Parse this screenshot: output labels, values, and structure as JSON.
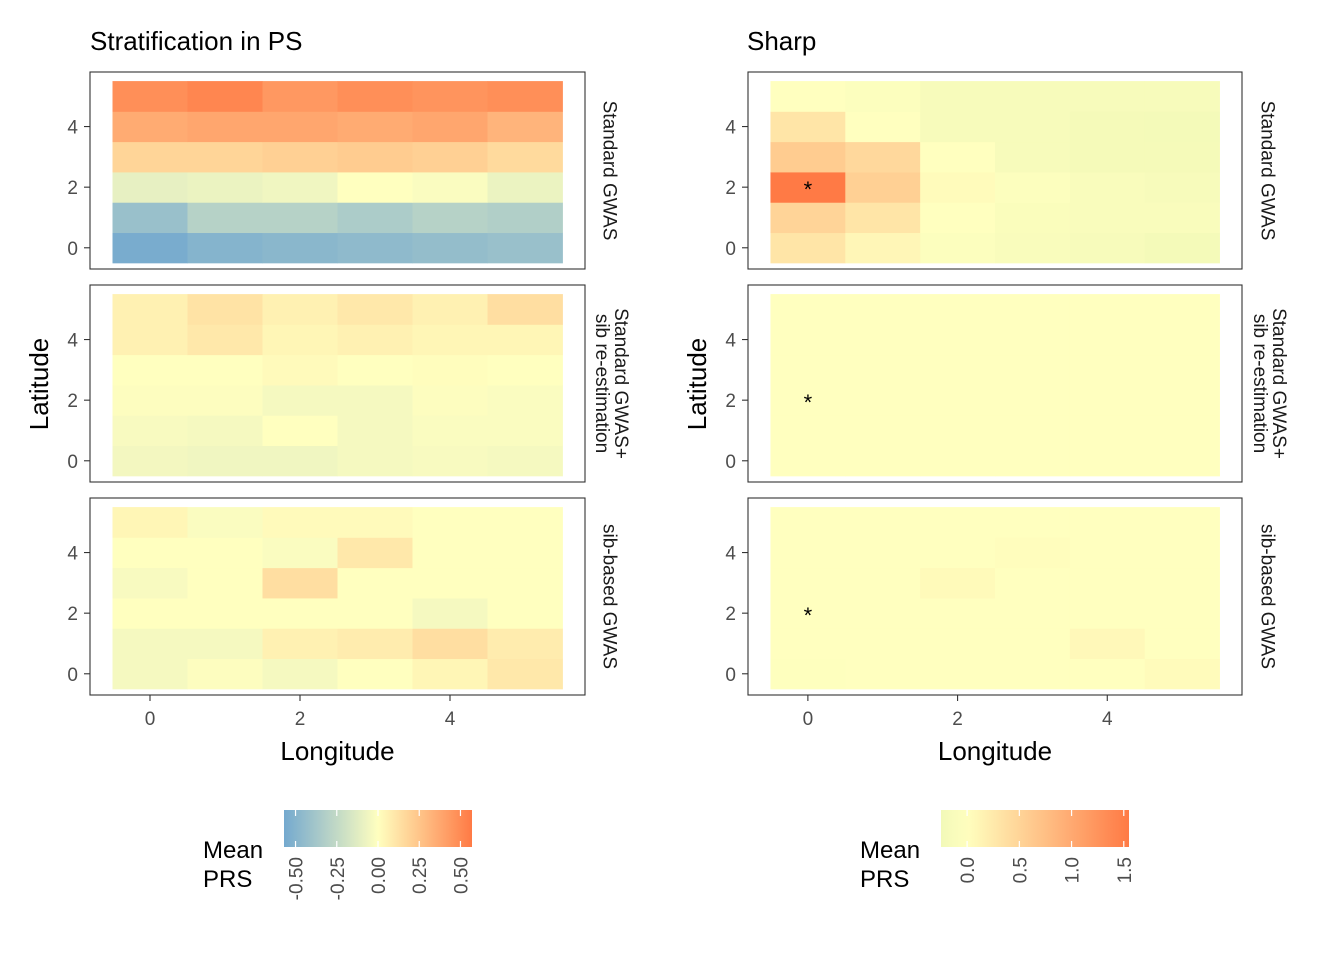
{
  "chart_data": [
    {
      "type": "heatmap",
      "title": "Stratification in PS",
      "xlabel": "Longitude",
      "ylabel": "Latitude",
      "x": [
        0,
        1,
        2,
        3,
        4,
        5
      ],
      "y": [
        0,
        1,
        2,
        3,
        4,
        5
      ],
      "xticks": [
        "0",
        "2",
        "4"
      ],
      "yticks": [
        "0",
        "2",
        "4"
      ],
      "xlim": [
        -0.8,
        5.8
      ],
      "ylim": [
        -0.7,
        5.8
      ],
      "facets": [
        {
          "label": "Standard GWAS",
          "values": [
            [
              -0.55,
              -0.5,
              -0.48,
              -0.46,
              -0.44,
              -0.42
            ],
            [
              -0.42,
              -0.3,
              -0.3,
              -0.34,
              -0.3,
              -0.32
            ],
            [
              -0.1,
              -0.08,
              -0.06,
              0.0,
              -0.02,
              -0.08
            ],
            [
              0.18,
              0.18,
              0.2,
              0.22,
              0.2,
              0.16
            ],
            [
              0.36,
              0.38,
              0.38,
              0.36,
              0.38,
              0.32
            ],
            [
              0.48,
              0.52,
              0.44,
              0.48,
              0.46,
              0.48
            ]
          ]
        },
        {
          "label": "Standard GWAS+\nsib re-estimation",
          "values": [
            [
              -0.05,
              -0.06,
              -0.06,
              -0.04,
              -0.03,
              -0.04
            ],
            [
              -0.03,
              -0.04,
              0.0,
              -0.04,
              -0.02,
              -0.02
            ],
            [
              -0.01,
              -0.01,
              -0.04,
              -0.04,
              -0.01,
              -0.02
            ],
            [
              0.0,
              0.0,
              0.02,
              0.0,
              0.01,
              0.0
            ],
            [
              0.06,
              0.1,
              0.04,
              0.06,
              0.04,
              0.04
            ],
            [
              0.06,
              0.12,
              0.06,
              0.1,
              0.06,
              0.14
            ]
          ]
        },
        {
          "label": "sib-based GWAS",
          "values": [
            [
              -0.04,
              -0.01,
              -0.04,
              0.0,
              0.04,
              0.1
            ],
            [
              -0.04,
              -0.04,
              0.06,
              0.08,
              0.14,
              0.08
            ],
            [
              0.0,
              0.0,
              0.0,
              0.0,
              -0.04,
              0.0
            ],
            [
              -0.03,
              0.0,
              0.14,
              0.0,
              0.0,
              0.0
            ],
            [
              0.0,
              0.0,
              -0.02,
              0.1,
              0.0,
              0.0
            ],
            [
              0.04,
              -0.02,
              0.02,
              0.02,
              0.0,
              0.0
            ]
          ]
        }
      ],
      "legend": {
        "title": "Mean\nPRS",
        "ticks": [
          "-0.50",
          "-0.25",
          "0.00",
          "0.25",
          "0.50"
        ],
        "limits": [
          -0.57,
          0.57
        ],
        "colors": [
          "#74a9cf",
          "#ffffbf",
          "#ff7a45"
        ]
      }
    },
    {
      "type": "heatmap",
      "title": "Sharp",
      "xlabel": "Longitude",
      "ylabel": "Latitude",
      "x": [
        0,
        1,
        2,
        3,
        4,
        5
      ],
      "y": [
        0,
        1,
        2,
        3,
        4,
        5
      ],
      "xticks": [
        "0",
        "2",
        "4"
      ],
      "yticks": [
        "0",
        "2",
        "4"
      ],
      "xlim": [
        -0.8,
        5.8
      ],
      "ylim": [
        -0.7,
        5.8
      ],
      "marker": {
        "x": 0,
        "y": 2,
        "symbol": "*"
      },
      "facets": [
        {
          "label": "Standard GWAS",
          "values": [
            [
              0.3,
              0.1,
              -0.05,
              -0.12,
              -0.15,
              -0.22
            ],
            [
              0.5,
              0.3,
              0.0,
              -0.1,
              -0.12,
              -0.12
            ],
            [
              1.55,
              0.55,
              0.05,
              -0.05,
              -0.12,
              -0.15
            ],
            [
              0.6,
              0.45,
              0.0,
              -0.15,
              -0.2,
              -0.2
            ],
            [
              0.3,
              0.0,
              -0.15,
              -0.15,
              -0.2,
              -0.22
            ],
            [
              0.0,
              -0.05,
              -0.15,
              -0.15,
              -0.15,
              -0.15
            ]
          ]
        },
        {
          "label": "Standard GWAS+\nsib re-estimation",
          "values": [
            [
              0.0,
              0.0,
              0.0,
              0.0,
              0.0,
              0.0
            ],
            [
              0.0,
              0.0,
              0.0,
              0.0,
              0.0,
              0.0
            ],
            [
              0.0,
              0.0,
              0.0,
              0.0,
              0.0,
              0.0
            ],
            [
              0.0,
              0.0,
              0.0,
              0.0,
              0.0,
              0.0
            ],
            [
              0.0,
              0.0,
              0.0,
              0.0,
              0.0,
              0.0
            ],
            [
              0.0,
              0.0,
              0.0,
              0.0,
              0.0,
              0.0
            ]
          ]
        },
        {
          "label": "sib-based GWAS",
          "values": [
            [
              -0.02,
              0.0,
              0.0,
              0.0,
              0.0,
              0.05
            ],
            [
              0.0,
              0.0,
              0.0,
              0.0,
              0.08,
              0.0
            ],
            [
              0.0,
              0.0,
              0.0,
              0.0,
              0.0,
              0.0
            ],
            [
              0.0,
              0.0,
              0.06,
              0.0,
              0.0,
              0.0
            ],
            [
              0.0,
              0.0,
              0.0,
              0.02,
              0.0,
              0.0
            ],
            [
              0.0,
              0.0,
              0.0,
              0.0,
              0.0,
              0.0
            ]
          ]
        }
      ],
      "legend": {
        "title": "Mean\nPRS",
        "ticks": [
          "0.0",
          "0.5",
          "1.0",
          "1.5"
        ],
        "limits": [
          -0.25,
          1.55
        ],
        "colors": [
          "#f2f9b8",
          "#ffffbf",
          "#ff7a45"
        ]
      }
    }
  ]
}
